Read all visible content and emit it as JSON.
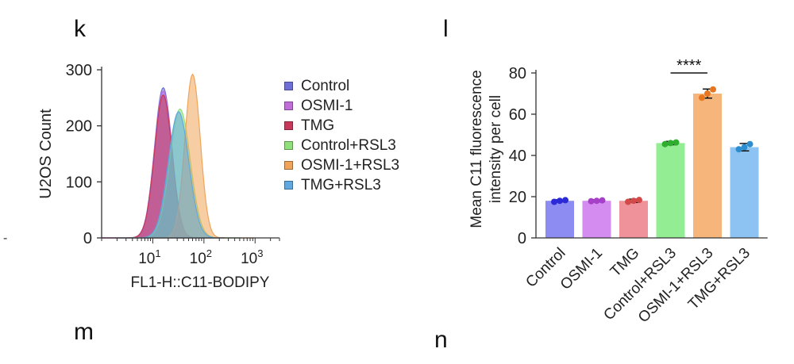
{
  "panels": {
    "k": "k",
    "l": "l",
    "m": "m",
    "n": "n"
  },
  "left_mark": "-",
  "chart_data": [
    {
      "type": "area",
      "xlabel": "FL1-H::C11-BODIPY",
      "ylabel": "U2OS Count",
      "x_scale": "log",
      "xlim": [
        1,
        3000
      ],
      "ylim": [
        0,
        300
      ],
      "x_ticks": [
        10,
        100,
        1000
      ],
      "x_tick_labels": [
        [
          "10",
          "1"
        ],
        [
          "10",
          "2"
        ],
        [
          "10",
          "3"
        ]
      ],
      "y_ticks": [
        0,
        100,
        200,
        300
      ],
      "grid": false,
      "legend": "right",
      "series": [
        {
          "name": "Control",
          "color": "#6f6fd8",
          "peak_x": 16,
          "peak_y": 268,
          "width": 0.17
        },
        {
          "name": "OSMI-1",
          "color": "#c06fd8",
          "peak_x": 16,
          "peak_y": 262,
          "width": 0.17
        },
        {
          "name": "TMG",
          "color": "#c8385a",
          "peak_x": 16,
          "peak_y": 255,
          "width": 0.17
        },
        {
          "name": "Control+RSL3",
          "color": "#8fe07a",
          "peak_x": 34,
          "peak_y": 230,
          "width": 0.2
        },
        {
          "name": "OSMI-1+RSL3",
          "color": "#f0a45a",
          "peak_x": 60,
          "peak_y": 292,
          "width": 0.15
        },
        {
          "name": "TMG+RSL3",
          "color": "#5fa8e0",
          "peak_x": 32,
          "peak_y": 225,
          "width": 0.2
        }
      ]
    },
    {
      "type": "bar",
      "ylabel": "Mean C11 fluorescence intensity per cell",
      "ylim": [
        0,
        80
      ],
      "y_ticks": [
        0,
        20,
        40,
        60,
        80
      ],
      "categories": [
        "Control",
        "OSMI-1",
        "TMG",
        "Control+RSL3",
        "OSMI-1+RSL3",
        "TMG+RSL3"
      ],
      "values": [
        18,
        18,
        18,
        46,
        70,
        44
      ],
      "errors": [
        0.5,
        0.5,
        0.8,
        0.8,
        2.2,
        1.8
      ],
      "colors": [
        "#8c8cf2",
        "#d58cf0",
        "#f0929a",
        "#93ee93",
        "#f6b57a",
        "#8cc3f2"
      ],
      "dot_colors": [
        "#2a2ad8",
        "#a640c8",
        "#d24a4a",
        "#2fae2f",
        "#e67620",
        "#2a8ed0"
      ],
      "points": [
        [
          17.5,
          18,
          18.3
        ],
        [
          17.8,
          18,
          18.2
        ],
        [
          17.5,
          18,
          18.4
        ],
        [
          45.5,
          46,
          46.3
        ],
        [
          68,
          70,
          72
        ],
        [
          43,
          44,
          45.5
        ]
      ],
      "significance": {
        "from": "Control+RSL3",
        "to": "OSMI-1+RSL3",
        "label": "****"
      },
      "grid": false
    }
  ]
}
